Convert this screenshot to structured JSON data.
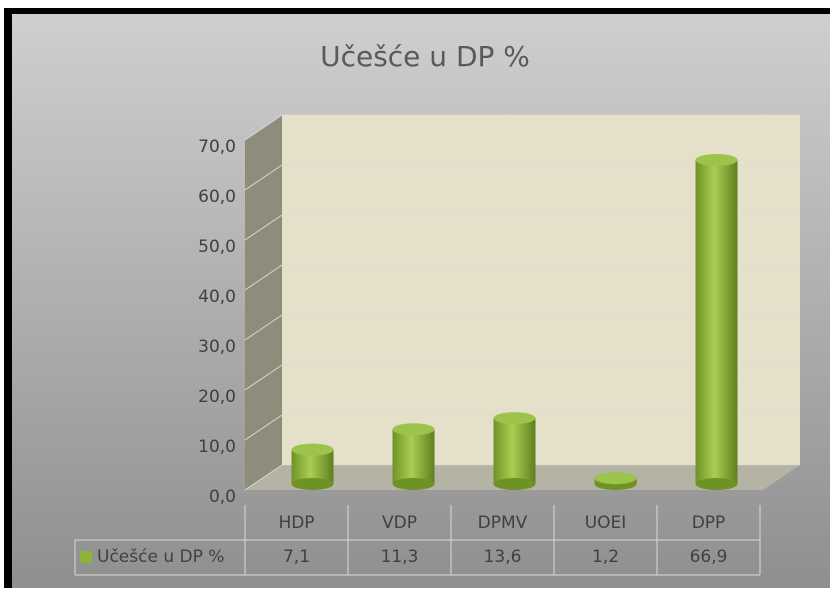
{
  "chart_data": {
    "type": "bar3d",
    "title": "Učešće u DP %",
    "categories": [
      "HDP",
      "VDP",
      "DPMV",
      "UOEI",
      "DPP"
    ],
    "series": [
      {
        "name": "Učešće u DP %",
        "color": "#8db33a",
        "values": [
          7.1,
          11.3,
          13.6,
          1.2,
          66.9
        ],
        "value_labels": [
          "7,1",
          "11,3",
          "13,6",
          "1,2",
          "66,9"
        ]
      }
    ],
    "ylim": [
      0,
      70
    ],
    "yticks": [
      {
        "value": 0,
        "label": "0,0"
      },
      {
        "value": 10,
        "label": "10,0"
      },
      {
        "value": 20,
        "label": "20,0"
      },
      {
        "value": 30,
        "label": "30,0"
      },
      {
        "value": 40,
        "label": "40,0"
      },
      {
        "value": 50,
        "label": "50,0"
      },
      {
        "value": 60,
        "label": "60,0"
      },
      {
        "value": 70,
        "label": "70,0"
      }
    ],
    "grid": true
  }
}
